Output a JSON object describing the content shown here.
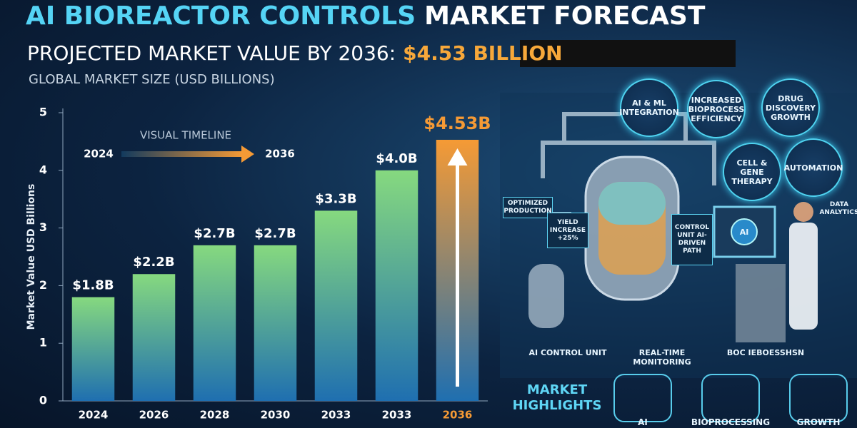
{
  "chart_data": {
    "type": "bar",
    "title": [
      "AI BIOREACTOR CONTROLS",
      "MARKET FORECAST"
    ],
    "subtitle": [
      "PROJECTED MARKET VALUE BY 2036:",
      "$4.53 BILLION"
    ],
    "caption": "GLOBAL MARKET SIZE (USD BILLIONS)",
    "y_label": "Market Value USD Billions",
    "annotation": {
      "title": "VISUAL TIMELINE",
      "start": "2024",
      "end": "2036"
    },
    "categories": [
      "2024",
      "2026",
      "2028",
      "2030",
      "2033",
      "2033",
      "2036"
    ],
    "values": [
      1.8,
      2.2,
      2.7,
      2.7,
      3.3,
      4.0,
      4.53
    ],
    "value_labels": [
      "$1.8B",
      "$2.2B",
      "$2.7B",
      "$2.7B",
      "$3.3B",
      "$4.0B",
      "$4.53B"
    ],
    "colors": [
      "#86d97f",
      "#86d97f",
      "#86d97f",
      "#86d97f",
      "#86d97f",
      "#86d97f",
      "#f59a35"
    ],
    "ylim": [
      0,
      5
    ],
    "yticks": [
      0,
      1,
      2,
      3,
      4,
      5
    ],
    "grid": false
  },
  "illustration": {
    "bubbles": [
      "AI & ML INTEGRATION",
      "INCREASED BIOPROCESS EFFICIENCY",
      "DRUG DISCOVERY GROWTH",
      "CELL & GENE THERAPY",
      "AUTOMATION"
    ],
    "tags": [
      "OPTIMIZED PRODUCTION",
      "YIELD INCREASE +25%",
      "CONTROL UNIT AI-DRIVEN PATH",
      "DATA ANALYTICS",
      "AI"
    ],
    "captions": [
      "AI CONTROL UNIT",
      "REAL-TIME MONITORING",
      "BOC IEBOESSHSN"
    ],
    "highlights_title": "MARKET HIGHLIGHTS",
    "highlights": [
      "AI",
      "BIOPROCESSING",
      "GROWTH"
    ]
  }
}
